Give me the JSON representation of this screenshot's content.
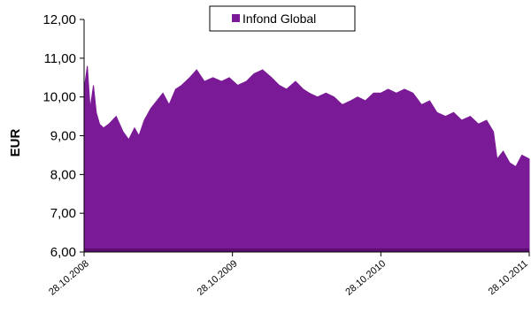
{
  "chart_data": {
    "type": "area",
    "title": "",
    "xlabel": "",
    "ylabel": "EUR",
    "ylim": [
      6,
      12
    ],
    "yticks": [
      "6,00",
      "7,00",
      "8,00",
      "9,00",
      "10,00",
      "11,00",
      "12,00"
    ],
    "xticks": [
      "28.10.2008",
      "28.10.2009",
      "28.10.2010",
      "28.10.2011"
    ],
    "grid": false,
    "legend_position": "top-center",
    "colors": {
      "fill": "#7b1a96",
      "baseline": "#5a0f70"
    },
    "series": [
      {
        "name": "Infond Global",
        "x": [
          "28.10.2008",
          "05.11.2008",
          "12.11.2008",
          "20.11.2008",
          "27.11.2008",
          "05.12.2008",
          "15.12.2008",
          "28.12.2008",
          "15.01.2009",
          "01.02.2009",
          "15.02.2009",
          "01.03.2009",
          "12.03.2009",
          "25.03.2009",
          "10.04.2009",
          "25.04.2009",
          "10.05.2009",
          "25.05.2009",
          "10.06.2009",
          "25.06.2009",
          "15.07.2009",
          "01.08.2009",
          "20.08.2009",
          "10.09.2009",
          "01.10.2009",
          "20.10.2009",
          "10.11.2009",
          "01.12.2009",
          "20.12.2009",
          "10.01.2010",
          "01.02.2010",
          "20.02.2010",
          "10.03.2010",
          "01.04.2010",
          "20.04.2010",
          "05.05.2010",
          "25.05.2010",
          "15.06.2010",
          "05.07.2010",
          "25.07.2010",
          "15.08.2010",
          "01.09.2010",
          "20.09.2010",
          "10.10.2010",
          "28.10.2010",
          "15.11.2010",
          "05.12.2010",
          "25.12.2010",
          "15.01.2011",
          "05.02.2011",
          "25.02.2011",
          "15.03.2011",
          "05.04.2011",
          "25.04.2011",
          "15.05.2011",
          "05.06.2011",
          "25.06.2011",
          "15.07.2011",
          "01.08.2011",
          "10.08.2011",
          "25.08.2011",
          "10.09.2011",
          "25.09.2011",
          "10.10.2011",
          "28.10.2011"
        ],
        "values": [
          10.2,
          10.8,
          9.7,
          10.3,
          9.6,
          9.3,
          9.2,
          9.3,
          9.5,
          9.1,
          8.9,
          9.2,
          9.0,
          9.4,
          9.7,
          9.9,
          10.1,
          9.8,
          10.2,
          10.3,
          10.5,
          10.7,
          10.4,
          10.5,
          10.4,
          10.5,
          10.3,
          10.4,
          10.6,
          10.7,
          10.5,
          10.3,
          10.2,
          10.4,
          10.2,
          10.1,
          10.0,
          10.1,
          10.0,
          9.8,
          9.9,
          10.0,
          9.9,
          10.1,
          10.1,
          10.2,
          10.1,
          10.2,
          10.1,
          9.8,
          9.9,
          9.6,
          9.5,
          9.6,
          9.4,
          9.5,
          9.3,
          9.4,
          9.1,
          8.4,
          8.6,
          8.3,
          8.2,
          8.5,
          8.4
        ]
      }
    ]
  }
}
